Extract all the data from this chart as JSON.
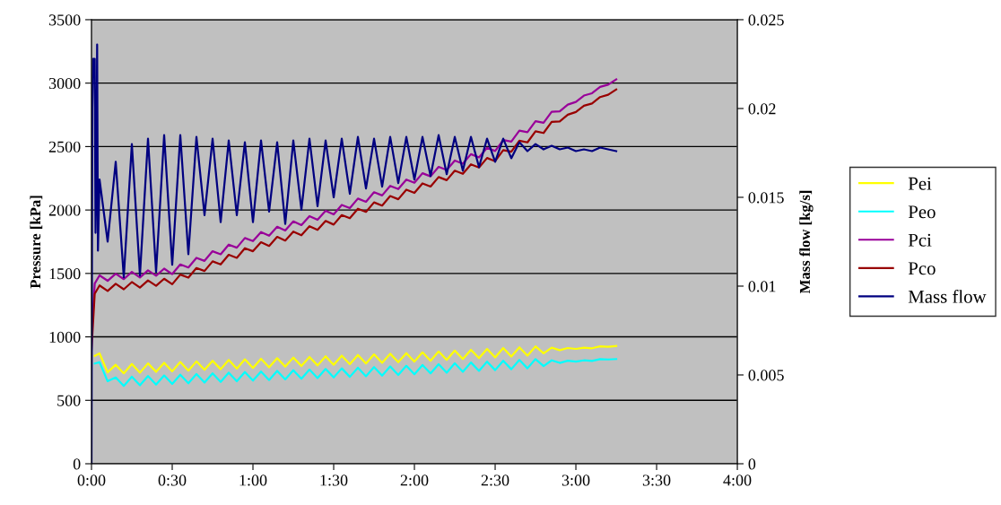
{
  "chart_data": {
    "type": "line",
    "xlabel": null,
    "ylabel": "Pressure [kPa]",
    "y2label": "Mass flow [kg/s]",
    "x": [
      0,
      0.02,
      0.05,
      0.1,
      0.15,
      0.2,
      0.25,
      0.3,
      0.35,
      0.4,
      0.45,
      0.5,
      0.55,
      0.6,
      0.65,
      0.7,
      0.75,
      0.8,
      0.85,
      0.9,
      0.95,
      1.0,
      1.05,
      1.1,
      1.15,
      1.2,
      1.25,
      1.3,
      1.35,
      1.4,
      1.45,
      1.5,
      1.55,
      1.6,
      1.65,
      1.7,
      1.75,
      1.8,
      1.85,
      1.9,
      1.95,
      2.0,
      2.05,
      2.1,
      2.15,
      2.2,
      2.25,
      2.3,
      2.35,
      2.4,
      2.45,
      2.5,
      2.55,
      2.6,
      2.65,
      2.7,
      2.75,
      2.8,
      2.85,
      2.9,
      2.95,
      3.0,
      3.05,
      3.1,
      3.15,
      3.2,
      3.25
    ],
    "series": [
      {
        "name": "Pei",
        "color": "#ffff00",
        "values": [
          null,
          850,
          870,
          720,
          780,
          713,
          786,
          718,
          791,
          724,
          796,
          729,
          802,
          734,
          807,
          740,
          812,
          745,
          818,
          750,
          823,
          755,
          827,
          760,
          832,
          765,
          837,
          770,
          842,
          775,
          847,
          780,
          852,
          785,
          857,
          790,
          862,
          795,
          867,
          800,
          872,
          805,
          878,
          812,
          885,
          818,
          892,
          825,
          898,
          832,
          905,
          838,
          912,
          845,
          918,
          852,
          925,
          870,
          915,
          895,
          912,
          905,
          915,
          910,
          925,
          922,
          928
        ]
      },
      {
        "name": "Peo",
        "color": "#00ffff",
        "values": [
          null,
          790,
          800,
          650,
          680,
          613,
          686,
          618,
          691,
          624,
          696,
          629,
          702,
          634,
          707,
          640,
          712,
          645,
          718,
          650,
          723,
          655,
          727,
          660,
          732,
          665,
          737,
          670,
          742,
          675,
          747,
          680,
          752,
          685,
          757,
          690,
          762,
          695,
          767,
          700,
          772,
          705,
          778,
          712,
          785,
          718,
          792,
          725,
          798,
          732,
          805,
          738,
          812,
          745,
          818,
          752,
          825,
          770,
          815,
          795,
          812,
          805,
          815,
          810,
          825,
          822,
          825
        ]
      },
      {
        "name": "Pci",
        "color": "#990099",
        "values": [
          1000,
          1420,
          1485,
          1442,
          1498,
          1455,
          1512,
          1468,
          1525,
          1482,
          1538,
          1495,
          1571,
          1547,
          1623,
          1599,
          1675,
          1651,
          1727,
          1703,
          1779,
          1755,
          1826,
          1797,
          1868,
          1839,
          1910,
          1881,
          1952,
          1923,
          1994,
          1965,
          2040,
          2015,
          2090,
          2065,
          2140,
          2115,
          2190,
          2165,
          2240,
          2215,
          2290,
          2265,
          2340,
          2315,
          2390,
          2365,
          2440,
          2415,
          2490,
          2465,
          2552,
          2539,
          2626,
          2613,
          2700,
          2687,
          2774,
          2778,
          2831,
          2852,
          2902,
          2920,
          2970,
          2988,
          3030
        ]
      },
      {
        "name": "Pco",
        "color": "#990000",
        "values": [
          900,
          1340,
          1405,
          1362,
          1418,
          1375,
          1432,
          1388,
          1445,
          1402,
          1458,
          1415,
          1491,
          1467,
          1543,
          1519,
          1595,
          1571,
          1647,
          1623,
          1699,
          1675,
          1746,
          1717,
          1788,
          1759,
          1830,
          1801,
          1872,
          1843,
          1914,
          1885,
          1960,
          1935,
          2010,
          1985,
          2060,
          2035,
          2110,
          2085,
          2160,
          2135,
          2210,
          2185,
          2260,
          2235,
          2310,
          2285,
          2360,
          2335,
          2410,
          2385,
          2472,
          2459,
          2546,
          2533,
          2620,
          2607,
          2694,
          2698,
          2751,
          2772,
          2822,
          2840,
          2890,
          2908,
          2950
        ]
      },
      {
        "name": "Mass flow",
        "color": "#000080",
        "axis": "y2",
        "x": [
          0,
          0.005,
          0.01,
          0.02,
          0.025,
          0.03,
          0.035,
          0.04,
          0.05,
          0.1,
          0.15,
          0.2,
          0.25,
          0.3,
          0.35,
          0.4,
          0.45,
          0.5,
          0.55,
          0.6,
          0.65,
          0.7,
          0.75,
          0.8,
          0.85,
          0.9,
          0.95,
          1.0,
          1.05,
          1.1,
          1.15,
          1.2,
          1.25,
          1.3,
          1.35,
          1.4,
          1.45,
          1.5,
          1.55,
          1.6,
          1.65,
          1.7,
          1.75,
          1.8,
          1.85,
          1.9,
          1.95,
          2.0,
          2.05,
          2.1,
          2.15,
          2.2,
          2.25,
          2.3,
          2.35,
          2.4,
          2.45,
          2.5,
          2.55,
          2.6,
          2.65,
          2.7,
          2.75,
          2.8,
          2.85,
          2.9,
          2.95,
          3.0,
          3.05,
          3.1,
          3.15,
          3.2,
          3.25
        ],
        "values": [
          0.0,
          0.02,
          0.0228,
          0.0228,
          0.013,
          0.016,
          0.0236,
          0.012,
          0.016,
          0.0125,
          0.017,
          0.0105,
          0.018,
          0.0106,
          0.0183,
          0.0108,
          0.0185,
          0.0112,
          0.0185,
          0.0118,
          0.0184,
          0.014,
          0.0183,
          0.0136,
          0.0182,
          0.014,
          0.0181,
          0.0136,
          0.0182,
          0.0142,
          0.0181,
          0.0135,
          0.0182,
          0.0143,
          0.0183,
          0.0145,
          0.0182,
          0.015,
          0.0183,
          0.0152,
          0.0184,
          0.0155,
          0.0183,
          0.0156,
          0.0184,
          0.0158,
          0.0184,
          0.016,
          0.0184,
          0.0162,
          0.0185,
          0.0163,
          0.0184,
          0.0165,
          0.0184,
          0.0167,
          0.0183,
          0.017,
          0.0183,
          0.0172,
          0.0181,
          0.0176,
          0.018,
          0.0177,
          0.0179,
          0.0177,
          0.0178,
          0.0176,
          0.0177,
          0.0176,
          0.0178,
          0.0177,
          0.0176
        ]
      }
    ],
    "xlim": [
      0,
      4
    ],
    "xticks": [
      {
        "value": 0,
        "label": "0:00"
      },
      {
        "value": 0.5,
        "label": "0:30"
      },
      {
        "value": 1,
        "label": "1:00"
      },
      {
        "value": 1.5,
        "label": "1:30"
      },
      {
        "value": 2,
        "label": "2:00"
      },
      {
        "value": 2.5,
        "label": "2:30"
      },
      {
        "value": 3,
        "label": "3:00"
      },
      {
        "value": 3.5,
        "label": "3:30"
      },
      {
        "value": 4,
        "label": "4:00"
      }
    ],
    "ylim": [
      0,
      3500
    ],
    "yticks": [
      0,
      500,
      1000,
      1500,
      2000,
      2500,
      3000,
      3500
    ],
    "y2lim": [
      0,
      0.025
    ],
    "y2ticks": [
      0,
      0.005,
      0.01,
      0.015,
      0.02,
      0.025
    ],
    "grid": "y",
    "legend": "right",
    "marker": "none",
    "line_style": "solid"
  }
}
